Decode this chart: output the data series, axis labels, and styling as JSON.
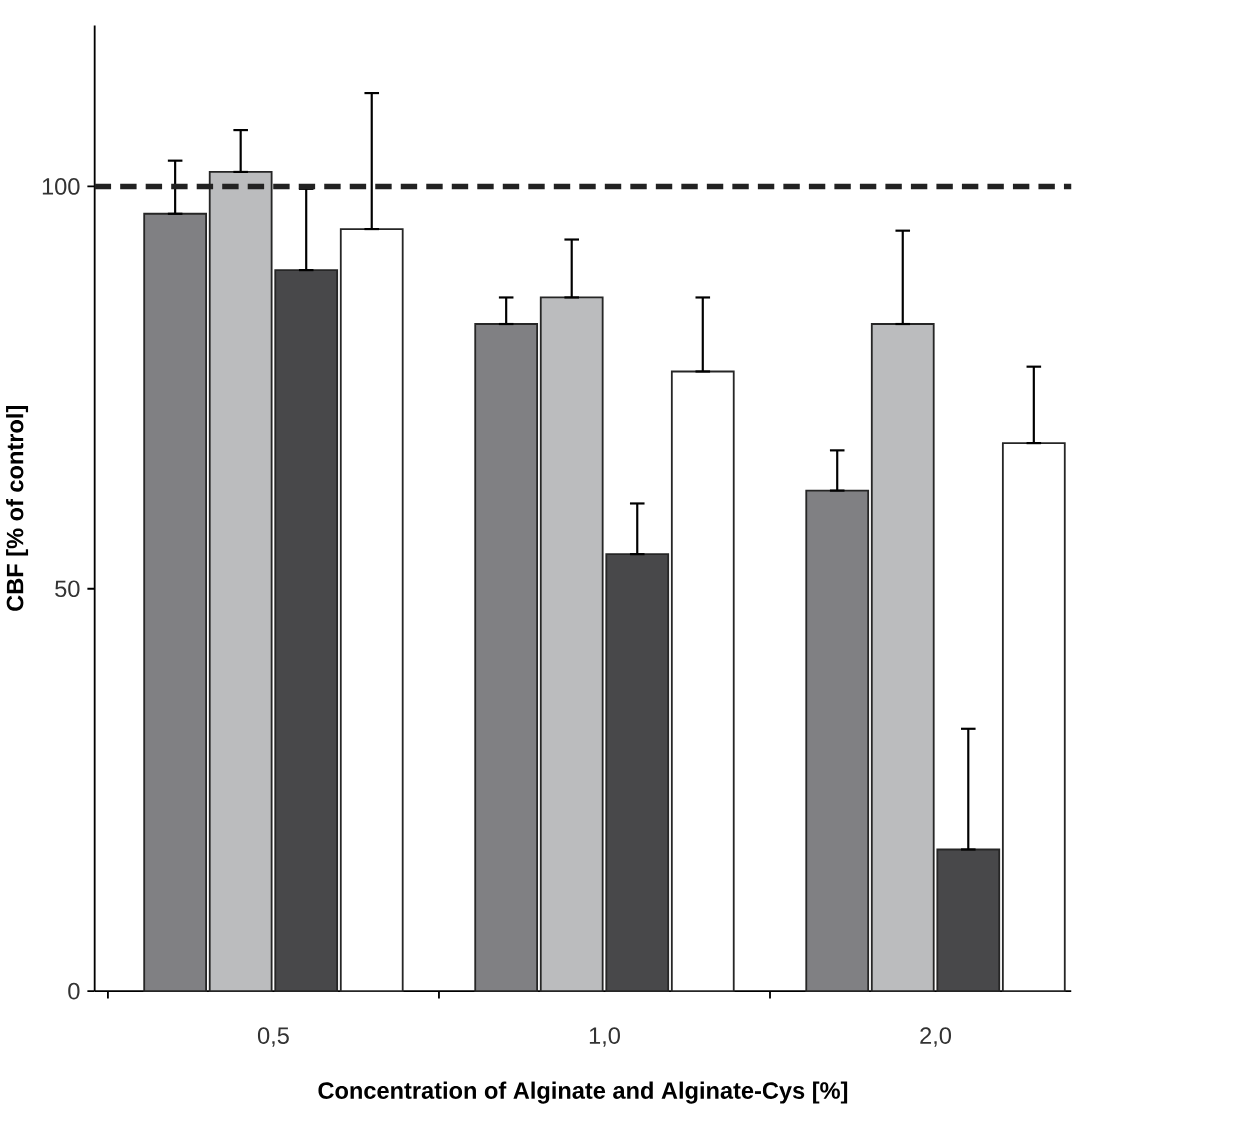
{
  "chart_data": {
    "type": "bar",
    "xlabel": "Concentration of Alginate and Alginate-Cys [%]",
    "ylabel": "CBF [% of control]",
    "categories": [
      "0,5",
      "1,0",
      "2,0"
    ],
    "series": [
      {
        "color": "#808083",
        "values": [
          96.6,
          82.9,
          62.2
        ],
        "errors": [
          [
            96.6,
            103.2
          ],
          [
            82.9,
            86.2
          ],
          [
            62.2,
            67.2
          ]
        ]
      },
      {
        "color": "#bbbcbe",
        "values": [
          101.8,
          86.2,
          82.9
        ],
        "errors": [
          [
            101.8,
            107.0
          ],
          [
            86.2,
            93.4
          ],
          [
            82.9,
            94.5
          ]
        ]
      },
      {
        "color": "#48484a",
        "values": [
          89.6,
          54.3,
          17.6
        ],
        "errors": [
          [
            89.6,
            99.7
          ],
          [
            54.3,
            60.6
          ],
          [
            17.6,
            32.6
          ]
        ]
      },
      {
        "color": "#ffffff",
        "values": [
          94.7,
          77.0,
          68.1
        ],
        "errors": [
          [
            94.7,
            111.6
          ],
          [
            77.0,
            86.2
          ],
          [
            68.1,
            77.6
          ]
        ]
      }
    ],
    "ylim": [
      0,
      120
    ],
    "yticks": [
      0,
      50,
      100
    ],
    "ref_lines": [
      {
        "axis": "y",
        "value": 100,
        "line_style": "dashed",
        "color": "#222222"
      }
    ],
    "grid": false
  }
}
